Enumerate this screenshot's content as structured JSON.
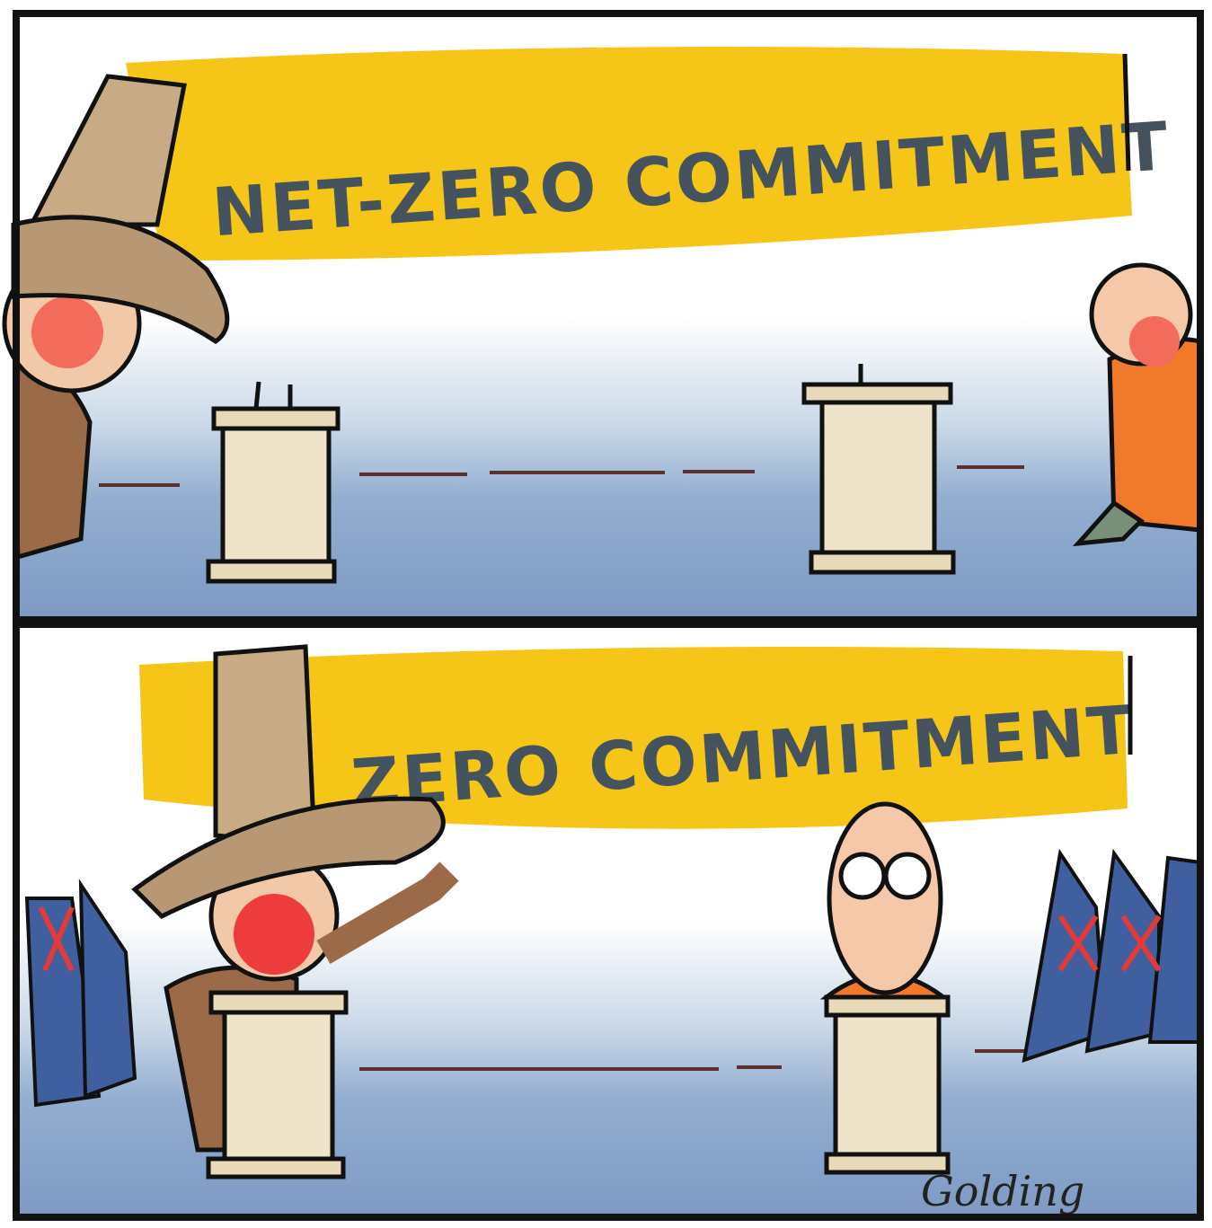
{
  "panels": [
    {
      "banner": "NET-ZERO COMMITMENT"
    },
    {
      "banner": "ZERO COMMITMENT"
    }
  ],
  "signature": "Golding"
}
